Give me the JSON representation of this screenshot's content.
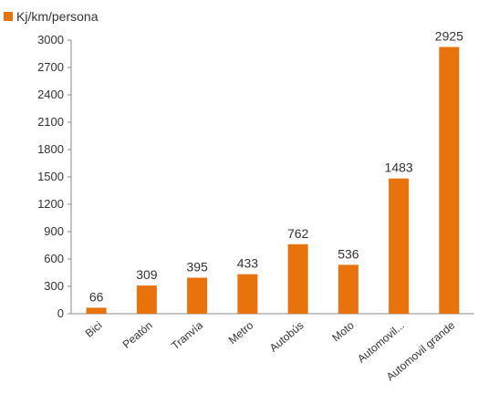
{
  "chart_data": {
    "type": "bar",
    "categories": [
      "Bici",
      "Peatón",
      "Tranvía",
      "Metro",
      "Autobús",
      "Moto",
      "Automovil...",
      "Automovil grande"
    ],
    "series": [
      {
        "name": "Kj/km/persona",
        "values": [
          66,
          309,
          395,
          433,
          762,
          536,
          1483,
          2925
        ]
      }
    ],
    "data_labels": [
      "66",
      "309",
      "395",
      "433",
      "762",
      "536",
      "1483",
      "2925"
    ],
    "y_ticks": [
      0,
      300,
      600,
      900,
      1200,
      1500,
      1800,
      2100,
      2400,
      2700,
      3000
    ],
    "ylim": [
      0,
      3000
    ],
    "title": "",
    "xlabel": "",
    "ylabel": "",
    "grid": false,
    "legend_position": "top-left",
    "bar_color": "#E8720C"
  }
}
